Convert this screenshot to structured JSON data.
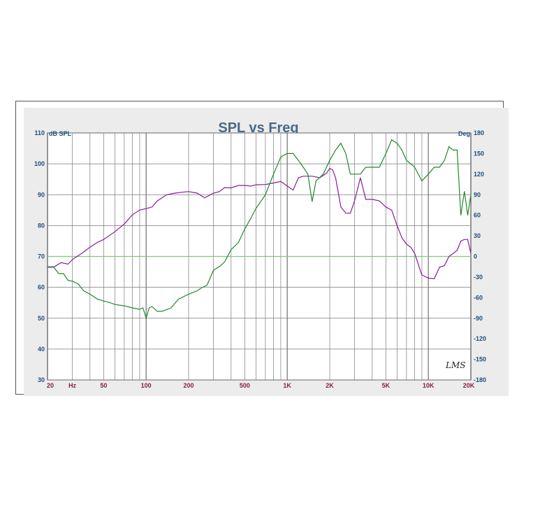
{
  "chart_data": {
    "type": "line",
    "title": "SPL vs Freq",
    "brand": "LMS",
    "xscale": "log",
    "xlim": [
      20,
      20000
    ],
    "ylim_left": [
      30,
      110
    ],
    "ylim_right": [
      -180,
      180
    ],
    "left_unit": "dB SPL",
    "right_unit": "Deg",
    "grid": true,
    "yticks_left": [
      "110",
      "100",
      "90",
      "80",
      "70",
      "60",
      "50",
      "40",
      "30"
    ],
    "yticks_right": [
      "180",
      "150",
      "120",
      "90",
      "60",
      "30",
      "0",
      "-30",
      "-60",
      "-90",
      "-120",
      "-150",
      "-180"
    ],
    "xticks": [
      {
        "value": 20,
        "label": "20"
      },
      {
        "value": 30,
        "label": "Hz"
      },
      {
        "value": 50,
        "label": "50"
      },
      {
        "value": 100,
        "label": "100"
      },
      {
        "value": 200,
        "label": "200"
      },
      {
        "value": 500,
        "label": "500"
      },
      {
        "value": 1000,
        "label": "1K"
      },
      {
        "value": 2000,
        "label": "2K"
      },
      {
        "value": 5000,
        "label": "5K"
      },
      {
        "value": 10000,
        "label": "10K"
      },
      {
        "value": 20000,
        "label": "20K"
      }
    ],
    "colors": {
      "spl": "#8b1a9c",
      "phase": "#1f8a2a",
      "zero_line": "#7fc97f",
      "grid": "#7a7a7a"
    },
    "series": [
      {
        "key": "spl",
        "axis": "left",
        "x": [
          20,
          22,
          25,
          28,
          30,
          35,
          40,
          45,
          50,
          60,
          70,
          80,
          90,
          100,
          110,
          120,
          140,
          160,
          180,
          200,
          230,
          260,
          300,
          330,
          360,
          400,
          450,
          500,
          550,
          600,
          700,
          800,
          900,
          1000,
          1100,
          1200,
          1300,
          1500,
          1700,
          1900,
          2000,
          2100,
          2200,
          2400,
          2600,
          2800,
          3000,
          3300,
          3600,
          4000,
          4500,
          5000,
          5500,
          6000,
          6500,
          7000,
          7500,
          8000,
          9000,
          10000,
          11000,
          12000,
          13000,
          14000,
          15000,
          16000,
          17000,
          18000,
          19000,
          20000
        ],
        "y": [
          66.5,
          66.5,
          68,
          67.5,
          69,
          71,
          73,
          74.5,
          75.5,
          78,
          80.5,
          83.5,
          85,
          85.5,
          86,
          88,
          90,
          90.5,
          90.8,
          91,
          90.5,
          89,
          90.5,
          91,
          92.3,
          92.2,
          93,
          93,
          92.8,
          93.2,
          93.3,
          93.8,
          94.3,
          92.8,
          91.5,
          95.5,
          96,
          96,
          95.5,
          97,
          98.5,
          98,
          95.5,
          86,
          84,
          84,
          88,
          95.5,
          88.5,
          88.5,
          88,
          86,
          85,
          80,
          76,
          74,
          73,
          71,
          64,
          63,
          62.8,
          66.5,
          67,
          70,
          71,
          72,
          75,
          75.5,
          75.5,
          71
        ]
      },
      {
        "key": "phase",
        "axis": "right",
        "x": [
          20,
          22,
          24,
          26,
          28,
          30,
          33,
          36,
          40,
          45,
          50,
          55,
          60,
          70,
          80,
          90,
          95,
          100,
          105,
          110,
          120,
          130,
          150,
          170,
          200,
          230,
          250,
          270,
          300,
          330,
          360,
          400,
          450,
          500,
          550,
          600,
          700,
          800,
          900,
          1000,
          1100,
          1200,
          1300,
          1400,
          1500,
          1600,
          1700,
          1800,
          2000,
          2200,
          2400,
          2600,
          2800,
          3000,
          3300,
          3600,
          4000,
          4500,
          5000,
          5500,
          6000,
          6500,
          7000,
          7500,
          8000,
          9000,
          10000,
          11000,
          12000,
          13000,
          14000,
          15000,
          16000,
          17000,
          18000,
          19000,
          20000
        ],
        "y": [
          -15,
          -15,
          -25,
          -25,
          -35,
          -36,
          -40,
          -50,
          -55,
          -62,
          -65,
          -67,
          -70,
          -72,
          -75,
          -77,
          -75,
          -90,
          -75,
          -73,
          -80,
          -80,
          -75,
          -62,
          -55,
          -50,
          -45,
          -42,
          -20,
          -15,
          -8,
          10,
          20,
          40,
          55,
          70,
          90,
          120,
          145,
          150,
          150,
          140,
          130,
          120,
          80,
          110,
          115,
          120,
          140,
          155,
          165,
          150,
          120,
          120,
          120,
          130,
          130,
          130,
          150,
          170,
          165,
          155,
          140,
          135,
          130,
          110,
          120,
          130,
          130,
          140,
          160,
          155,
          155,
          60,
          95,
          60,
          90
        ]
      }
    ]
  }
}
